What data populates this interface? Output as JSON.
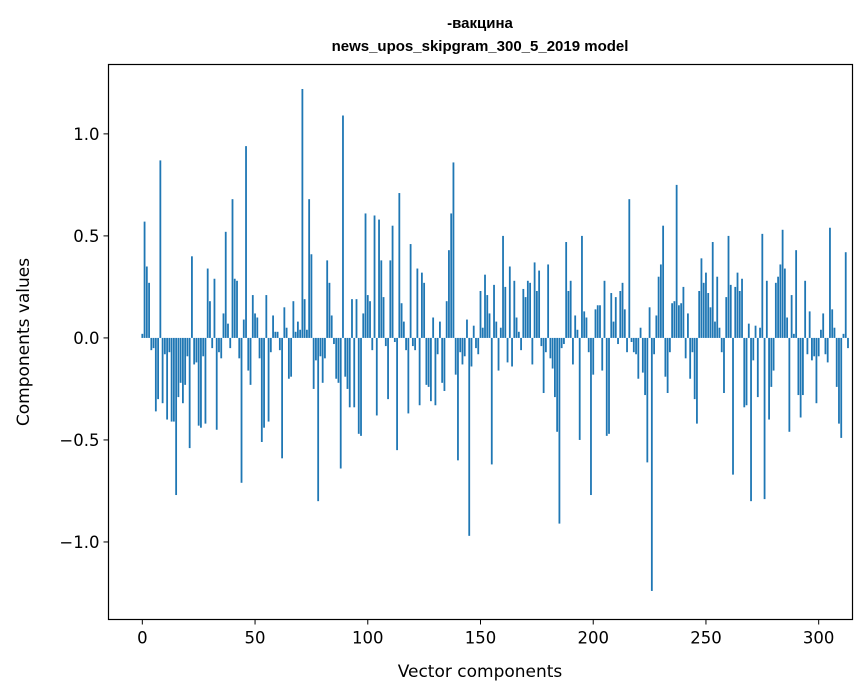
{
  "chart_data": {
    "type": "bar",
    "title_line1": "-вакцина",
    "title_line2": "news_upos_skipgram_300_5_2019 model",
    "xlabel": "Vector components",
    "ylabel": "Components values",
    "xlim": [
      -15,
      315
    ],
    "ylim": [
      -1.38,
      1.34
    ],
    "x_ticks": [
      0,
      50,
      100,
      150,
      200,
      250,
      300
    ],
    "x_tick_labels": [
      "0",
      "50",
      "100",
      "150",
      "200",
      "250",
      "300"
    ],
    "y_ticks": [
      -1.0,
      -0.5,
      0.0,
      0.5,
      1.0
    ],
    "y_tick_labels": [
      "−1.0",
      "−0.5",
      "0.0",
      "0.5",
      "1.0"
    ],
    "bar_color": "#1f77b4",
    "grid": false,
    "values": [
      0.02,
      0.57,
      0.35,
      0.27,
      -0.06,
      -0.05,
      -0.36,
      -0.3,
      0.87,
      -0.32,
      -0.08,
      -0.4,
      -0.07,
      -0.41,
      -0.41,
      -0.77,
      -0.29,
      -0.22,
      -0.32,
      -0.23,
      -0.09,
      -0.54,
      0.4,
      -0.13,
      -0.12,
      -0.43,
      -0.44,
      -0.09,
      -0.42,
      0.34,
      0.18,
      -0.05,
      0.29,
      -0.45,
      -0.07,
      -0.1,
      0.12,
      0.52,
      0.07,
      -0.05,
      0.68,
      0.29,
      0.28,
      -0.1,
      -0.71,
      0.09,
      0.94,
      -0.16,
      -0.23,
      0.21,
      0.12,
      0.1,
      -0.1,
      -0.51,
      -0.44,
      0.21,
      -0.41,
      -0.07,
      0.11,
      0.03,
      0.03,
      -0.06,
      -0.59,
      0.15,
      0.05,
      -0.2,
      -0.19,
      0.18,
      0.03,
      0.08,
      0.04,
      1.22,
      0.19,
      0.04,
      0.68,
      0.41,
      -0.25,
      -0.11,
      -0.8,
      -0.09,
      -0.22,
      -0.1,
      0.38,
      0.27,
      0.11,
      -0.03,
      -0.2,
      -0.22,
      -0.64,
      1.09,
      -0.19,
      -0.25,
      -0.34,
      0.19,
      -0.34,
      0.19,
      -0.47,
      -0.48,
      0.12,
      0.61,
      0.21,
      0.18,
      -0.06,
      0.6,
      -0.38,
      0.58,
      0.38,
      0.2,
      -0.04,
      -0.3,
      0.38,
      0.55,
      -0.02,
      -0.55,
      0.71,
      0.17,
      0.08,
      -0.06,
      -0.37,
      0.46,
      -0.04,
      -0.06,
      0.34,
      -0.33,
      0.32,
      0.27,
      -0.23,
      -0.24,
      -0.31,
      0.1,
      -0.33,
      -0.08,
      0.08,
      -0.22,
      -0.26,
      0.18,
      0.43,
      0.61,
      0.86,
      -0.18,
      -0.6,
      -0.07,
      -0.13,
      -0.09,
      0.09,
      -0.97,
      -0.14,
      0.06,
      -0.05,
      -0.08,
      0.23,
      0.05,
      0.31,
      0.21,
      0.12,
      -0.62,
      0.26,
      0.08,
      -0.16,
      0.05,
      0.5,
      0.25,
      -0.12,
      0.35,
      -0.14,
      0.28,
      0.1,
      0.03,
      -0.06,
      0.24,
      0.2,
      0.28,
      0.27,
      -0.13,
      0.37,
      0.23,
      0.33,
      -0.04,
      -0.27,
      -0.07,
      0.36,
      -0.1,
      -0.15,
      -0.29,
      -0.46,
      -0.91,
      -0.05,
      -0.03,
      0.47,
      0.23,
      0.28,
      -0.13,
      0.11,
      0.04,
      -0.5,
      0.5,
      0.13,
      0.1,
      -0.07,
      -0.77,
      -0.18,
      0.14,
      0.16,
      0.16,
      -0.16,
      0.28,
      -0.48,
      -0.47,
      0.22,
      0.08,
      0.2,
      -0.03,
      0.23,
      0.27,
      0.14,
      -0.07,
      0.68,
      -0.02,
      -0.07,
      -0.08,
      -0.2,
      0.05,
      -0.17,
      -0.28,
      -0.61,
      0.15,
      -1.24,
      -0.08,
      0.11,
      0.3,
      0.36,
      0.55,
      -0.19,
      -0.27,
      -0.07,
      0.17,
      0.18,
      0.75,
      0.16,
      0.17,
      0.25,
      -0.1,
      0.12,
      -0.2,
      -0.07,
      -0.3,
      -0.42,
      0.23,
      0.39,
      0.27,
      0.32,
      0.22,
      0.15,
      0.47,
      0.08,
      0.3,
      0.05,
      -0.07,
      -0.27,
      0.2,
      0.5,
      0.26,
      -0.67,
      0.25,
      0.32,
      0.23,
      0.29,
      -0.34,
      -0.33,
      0.07,
      -0.8,
      -0.11,
      0.06,
      -0.29,
      0.05,
      0.51,
      -0.79,
      0.28,
      -0.4,
      -0.24,
      -0.16,
      0.27,
      0.3,
      0.36,
      0.53,
      0.34,
      0.1,
      -0.46,
      0.21,
      0.02,
      0.43,
      -0.28,
      -0.39,
      -0.28,
      0.28,
      -0.08,
      0.13,
      -0.11,
      -0.09,
      -0.32,
      -0.09,
      0.04,
      0.12,
      -0.08,
      -0.12,
      0.54,
      0.14,
      0.05,
      -0.24,
      -0.42,
      -0.49,
      0.02,
      0.42,
      -0.05
    ]
  }
}
